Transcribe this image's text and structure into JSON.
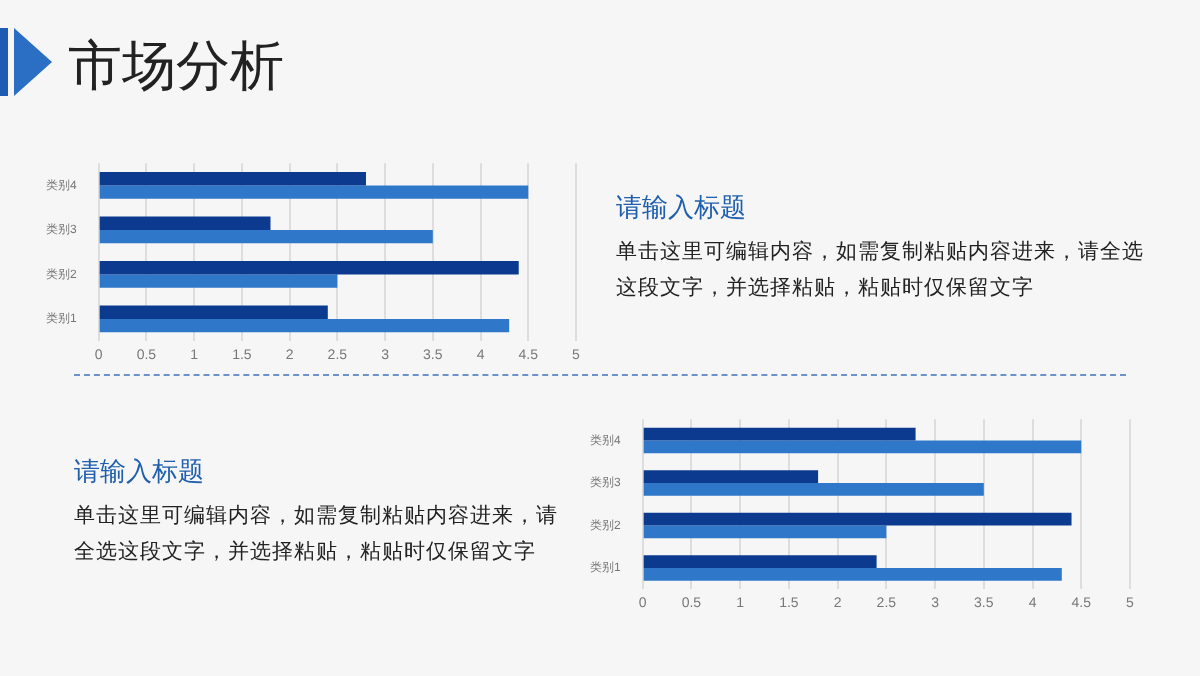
{
  "chart_data": [
    {
      "type": "other",
      "title": "市场分析"
    },
    {
      "type": "bar",
      "orientation": "horizontal",
      "categories": [
        "类别4",
        "类别3",
        "类别2",
        "类别1"
      ],
      "series": [
        {
          "color": "#0b3a8e",
          "values": [
            2.8,
            1.8,
            4.4,
            2.4
          ]
        },
        {
          "color": "#2f78c9",
          "values": [
            4.5,
            3.5,
            2.5,
            4.3
          ]
        }
      ],
      "xlim": [
        0,
        5
      ],
      "xticks": [
        0,
        0.5,
        1,
        1.5,
        2,
        2.5,
        3,
        3.5,
        4,
        4.5,
        5
      ],
      "grid": "x",
      "legend": false
    },
    {
      "type": "other",
      "title": "请输入标题",
      "annotations": [
        "单击这里可编辑内容，如需复制粘贴内容进来，请全选这段文字，并选择粘贴，粘贴时仅保留文字"
      ]
    },
    {
      "type": "other",
      "title": "请输入标题",
      "annotations": [
        "单击这里可编辑内容，如需复制粘贴内容进来，请全选这段文字，并选择粘贴，粘贴时仅保留文字"
      ]
    },
    {
      "type": "bar",
      "orientation": "horizontal",
      "categories": [
        "类别4",
        "类别3",
        "类别2",
        "类别1"
      ],
      "series": [
        {
          "color": "#0b3a8e",
          "values": [
            2.8,
            1.8,
            4.4,
            2.4
          ]
        },
        {
          "color": "#2f78c9",
          "values": [
            4.5,
            3.5,
            2.5,
            4.3
          ]
        }
      ],
      "xlim": [
        0,
        5
      ],
      "xticks": [
        0,
        0.5,
        1,
        1.5,
        2,
        2.5,
        3,
        3.5,
        4,
        4.5,
        5
      ],
      "grid": "x",
      "legend": false
    }
  ]
}
